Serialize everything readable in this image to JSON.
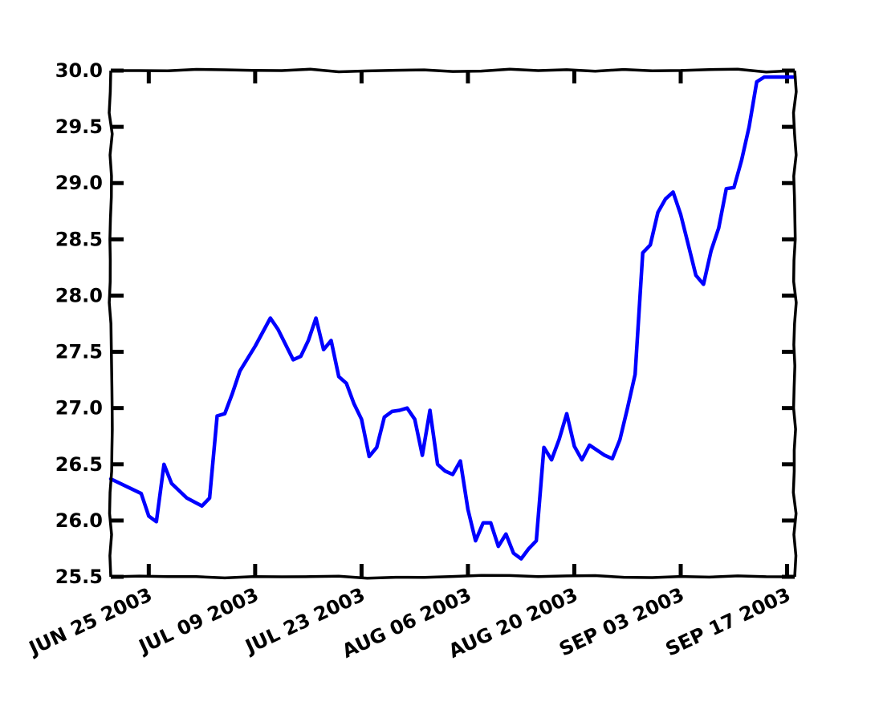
{
  "chart_data": {
    "type": "line",
    "title": "",
    "xlabel": "",
    "ylabel": "",
    "style": "xkcd hand-drawn",
    "grid": false,
    "legend": "none",
    "colors": {
      "series": "#0000ff",
      "axes": "#000000",
      "background": "#ffffff"
    },
    "xlim": [
      "2003-06-20",
      "2003-09-18"
    ],
    "ylim": [
      25.5,
      30.0
    ],
    "x_ticks": [
      "2003-06-25",
      "2003-07-09",
      "2003-07-23",
      "2003-08-06",
      "2003-08-20",
      "2003-09-03",
      "2003-09-17"
    ],
    "x_tick_labels": [
      "JUN 25 2003",
      "JUL 09 2003",
      "JUL 23 2003",
      "AUG 06 2003",
      "AUG 20 2003",
      "SEP 03 2003",
      "SEP 17 2003"
    ],
    "y_ticks": [
      25.5,
      26.0,
      26.5,
      27.0,
      27.5,
      28.0,
      28.5,
      29.0,
      29.5,
      30.0
    ],
    "y_tick_labels": [
      "25.5",
      "26.0",
      "26.5",
      "27.0",
      "27.5",
      "28.0",
      "28.5",
      "29.0",
      "29.5",
      "30.0"
    ],
    "series": [
      {
        "x": [
          "2003-06-20",
          "2003-06-24",
          "2003-06-25",
          "2003-06-26",
          "2003-06-27",
          "2003-06-28",
          "2003-06-30",
          "2003-07-02",
          "2003-07-03",
          "2003-07-04",
          "2003-07-05",
          "2003-07-06",
          "2003-07-07",
          "2003-07-09",
          "2003-07-11",
          "2003-07-12",
          "2003-07-14",
          "2003-07-15",
          "2003-07-16",
          "2003-07-17",
          "2003-07-18",
          "2003-07-19",
          "2003-07-20",
          "2003-07-21",
          "2003-07-22",
          "2003-07-23",
          "2003-07-24",
          "2003-07-25",
          "2003-07-26",
          "2003-07-27",
          "2003-07-28",
          "2003-07-29",
          "2003-07-30",
          "2003-07-31",
          "2003-08-01",
          "2003-08-02",
          "2003-08-03",
          "2003-08-04",
          "2003-08-05",
          "2003-08-06",
          "2003-08-07",
          "2003-08-08",
          "2003-08-09",
          "2003-08-10",
          "2003-08-11",
          "2003-08-12",
          "2003-08-13",
          "2003-08-14",
          "2003-08-15",
          "2003-08-16",
          "2003-08-17",
          "2003-08-18",
          "2003-08-19",
          "2003-08-20",
          "2003-08-21",
          "2003-08-22",
          "2003-08-24",
          "2003-08-25",
          "2003-08-26",
          "2003-08-27",
          "2003-08-28",
          "2003-08-29",
          "2003-08-30",
          "2003-08-31",
          "2003-09-01",
          "2003-09-02",
          "2003-09-03",
          "2003-09-04",
          "2003-09-05",
          "2003-09-06",
          "2003-09-07",
          "2003-09-08",
          "2003-09-09",
          "2003-09-10",
          "2003-09-11",
          "2003-09-12",
          "2003-09-13",
          "2003-09-14",
          "2003-09-15",
          "2003-09-16",
          "2003-09-17",
          "2003-09-18"
        ],
        "y": [
          26.37,
          26.24,
          26.04,
          25.99,
          26.5,
          26.33,
          26.2,
          26.13,
          26.2,
          26.93,
          26.95,
          27.13,
          27.33,
          27.55,
          27.8,
          27.7,
          27.43,
          27.46,
          27.6,
          27.8,
          27.52,
          27.6,
          27.28,
          27.22,
          27.04,
          26.9,
          26.57,
          26.65,
          26.92,
          26.97,
          26.98,
          27.0,
          26.9,
          26.58,
          26.98,
          26.5,
          26.44,
          26.41,
          26.53,
          26.1,
          25.82,
          25.98,
          25.98,
          25.77,
          25.88,
          25.71,
          25.66,
          25.75,
          25.82,
          26.65,
          26.54,
          26.72,
          26.95,
          26.66,
          26.54,
          26.67,
          26.58,
          26.55,
          26.72,
          27.0,
          27.3,
          28.38,
          28.45,
          28.74,
          28.86,
          28.92,
          28.72,
          28.45,
          28.18,
          28.1,
          28.4,
          28.6,
          28.95,
          28.96,
          29.2,
          29.5,
          29.9,
          30.0,
          30.0,
          30.0,
          30.0,
          30.0
        ]
      }
    ]
  }
}
